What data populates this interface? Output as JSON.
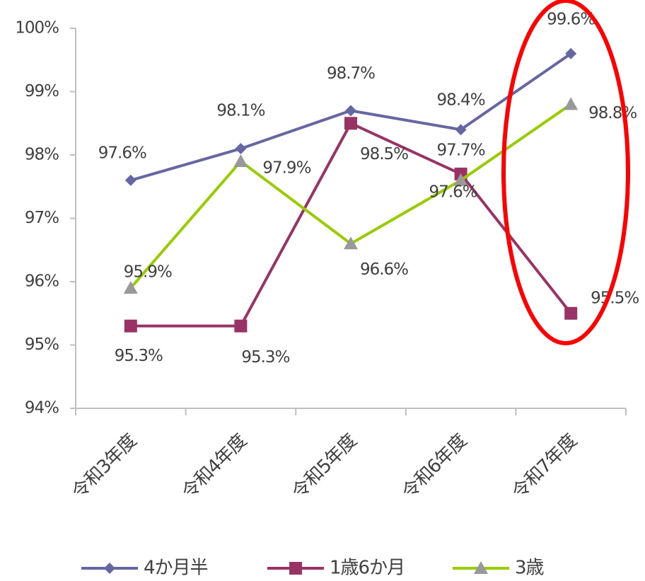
{
  "chart_data": {
    "type": "line",
    "categories": [
      "令和3年度",
      "令和4年度",
      "令和5年度",
      "令和6年度",
      "令和7年度"
    ],
    "series": [
      {
        "name": "4か月半",
        "color": "#6666a3",
        "marker": "diamond",
        "values": [
          97.6,
          98.1,
          98.7,
          98.4,
          99.6
        ],
        "value_labels": [
          "97.6%",
          "98.1%",
          "98.7%",
          "98.4%",
          "99.6%"
        ]
      },
      {
        "name": "1歳6か月",
        "color": "#993366",
        "marker": "square",
        "values": [
          95.3,
          95.3,
          98.5,
          97.7,
          95.5
        ],
        "value_labels": [
          "95.3%",
          "95.3%",
          "98.5%",
          "97.7%",
          "95.5%"
        ]
      },
      {
        "name": "3歳",
        "color": "#99cc00",
        "marker": "triangle",
        "values": [
          95.9,
          97.9,
          96.6,
          97.6,
          98.8
        ],
        "value_labels": [
          "95.9%",
          "97.9%",
          "96.6%",
          "97.6%",
          "98.8%"
        ]
      }
    ],
    "ylim": [
      94,
      100
    ],
    "yticks": [
      {
        "value": 94,
        "label": "94%"
      },
      {
        "value": 95,
        "label": "95%"
      },
      {
        "value": 96,
        "label": "96%"
      },
      {
        "value": 97,
        "label": "97%"
      },
      {
        "value": 98,
        "label": "98%"
      },
      {
        "value": 99,
        "label": "99%"
      },
      {
        "value": 100,
        "label": "100%"
      }
    ],
    "grid": false,
    "legend": "bottom"
  }
}
